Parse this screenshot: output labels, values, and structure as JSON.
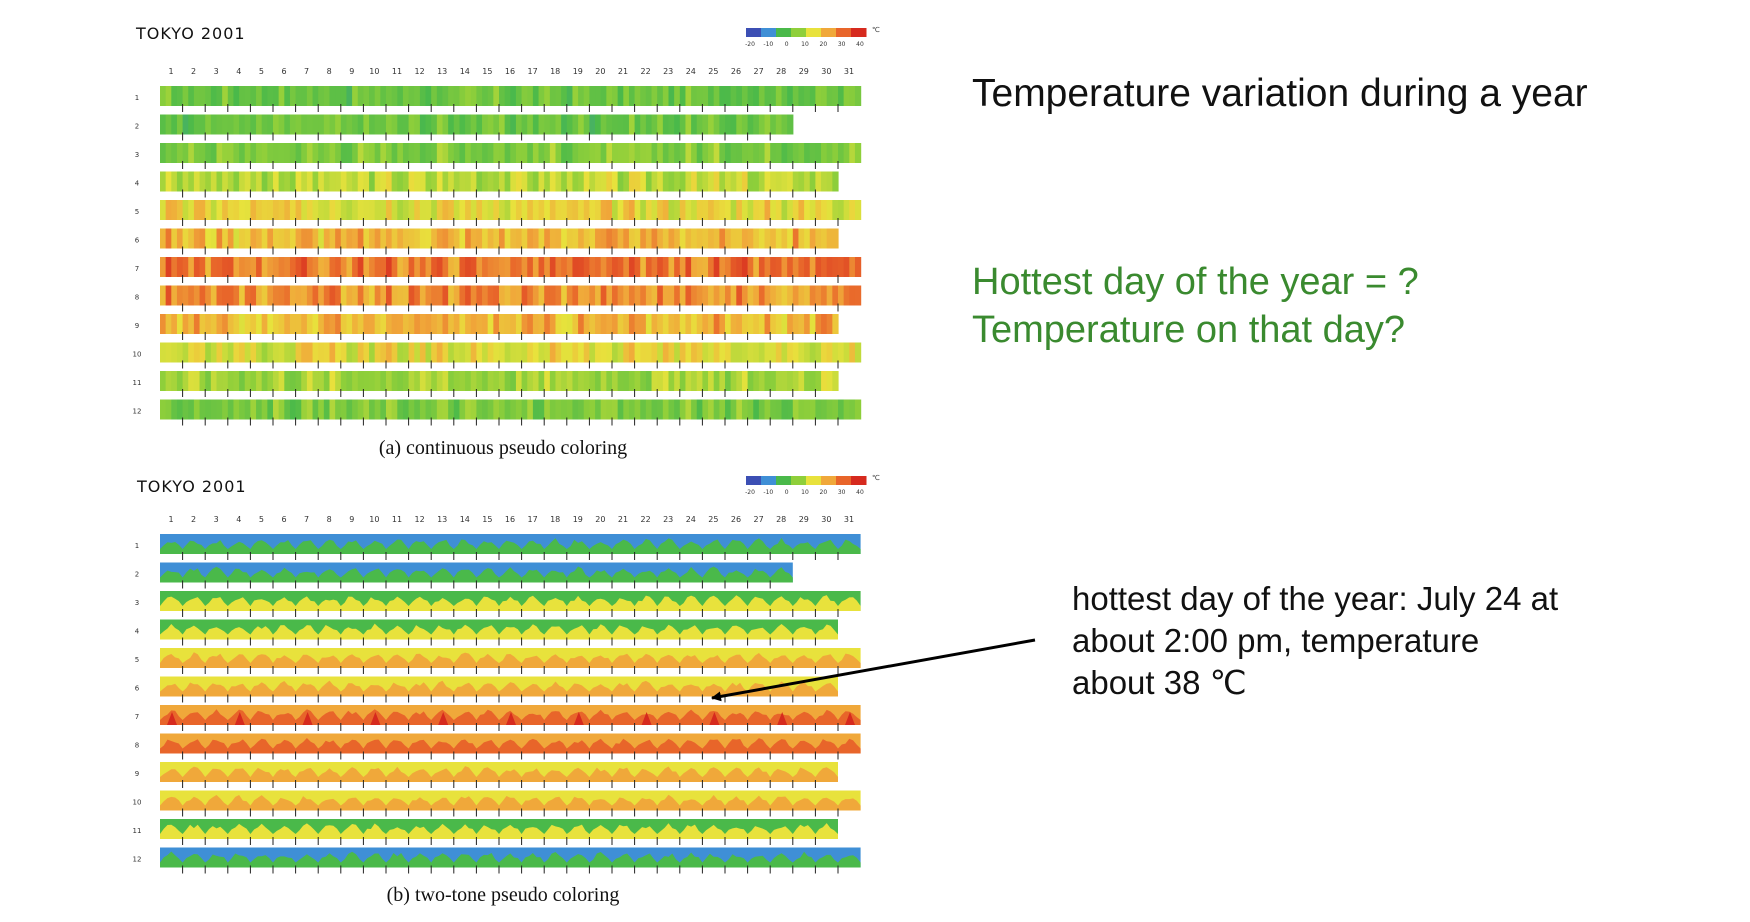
{
  "slide": {
    "heading": "Temperature variation during a year",
    "question_line1": "Hottest day of the year = ?",
    "question_line2": "Temperature on that day?",
    "answer_line1": "hottest day of the year: July 24 at",
    "answer_line2": "about 2:00 pm, temperature",
    "answer_line3": "about 38 ℃"
  },
  "colors": {
    "question_text": "#3a8a2f",
    "scale": [
      "#3c4fb4",
      "#3f8fd6",
      "#4ab94a",
      "#8fcf3a",
      "#e8e23c",
      "#f0a83a",
      "#e8652a",
      "#d62a1e"
    ]
  },
  "chart_data": [
    {
      "type": "heatmap",
      "panel": "a",
      "title": "TOKYO 2001",
      "caption": "(a) continuous pseudo coloring",
      "x_ticks": [
        "1",
        "2",
        "3",
        "4",
        "5",
        "6",
        "7",
        "8",
        "9",
        "10",
        "11",
        "12",
        "13",
        "14",
        "15",
        "16",
        "17",
        "18",
        "19",
        "20",
        "21",
        "22",
        "23",
        "24",
        "25",
        "26",
        "27",
        "28",
        "29",
        "30",
        "31"
      ],
      "y_ticks": [
        "1",
        "2",
        "3",
        "4",
        "5",
        "6",
        "7",
        "8",
        "9",
        "10",
        "11",
        "12"
      ],
      "days_in_month": [
        31,
        28,
        31,
        30,
        31,
        30,
        31,
        31,
        30,
        31,
        30,
        31
      ],
      "color_scale": {
        "labels": [
          "-20",
          "-10",
          "0",
          "10",
          "20",
          "30",
          "40"
        ],
        "unit": "℃"
      },
      "approx_monthly_temperature_c": [
        5,
        5,
        8,
        14,
        19,
        23,
        29,
        27,
        23,
        18,
        12,
        7
      ]
    },
    {
      "type": "heatmap",
      "panel": "b",
      "title": "TOKYO 2001",
      "caption": "(b) two-tone pseudo coloring",
      "x_ticks": [
        "1",
        "2",
        "3",
        "4",
        "5",
        "6",
        "7",
        "8",
        "9",
        "10",
        "11",
        "12",
        "13",
        "14",
        "15",
        "16",
        "17",
        "18",
        "19",
        "20",
        "21",
        "22",
        "23",
        "24",
        "25",
        "26",
        "27",
        "28",
        "29",
        "30",
        "31"
      ],
      "y_ticks": [
        "1",
        "2",
        "3",
        "4",
        "5",
        "6",
        "7",
        "8",
        "9",
        "10",
        "11",
        "12"
      ],
      "days_in_month": [
        31,
        28,
        31,
        30,
        31,
        30,
        31,
        31,
        30,
        31,
        30,
        31
      ],
      "color_scale": {
        "labels": [
          "-20",
          "-10",
          "0",
          "10",
          "20",
          "30",
          "40"
        ],
        "unit": "℃"
      },
      "approx_monthly_temperature_c": [
        5,
        5,
        8,
        14,
        19,
        23,
        29,
        27,
        23,
        18,
        12,
        7
      ],
      "annotation": {
        "month": 7,
        "day": 24,
        "hour": 14,
        "temperature_c": 38
      }
    }
  ]
}
